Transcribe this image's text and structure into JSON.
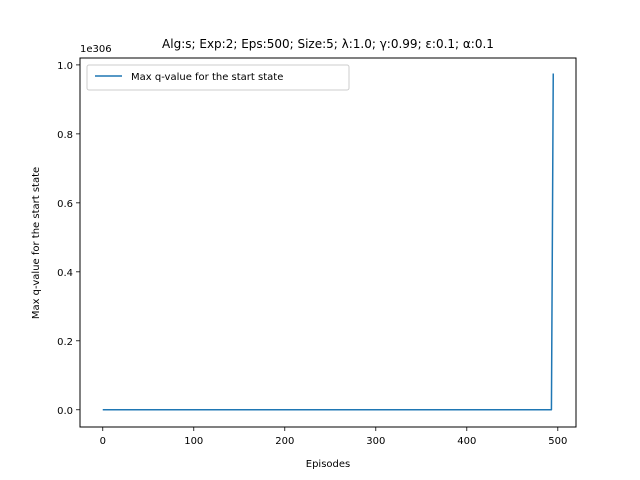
{
  "chart_data": {
    "type": "line",
    "title": "Alg:s; Exp:2; Eps:500; Size:5; λ:1.0; γ:0.99; ε:0.1; α:0.1",
    "xlabel": "Episodes",
    "ylabel": "Max q-value for the start state",
    "y_offset_text": "1e306",
    "xlim": [
      -25,
      520
    ],
    "ylim": [
      -0.05,
      1.02
    ],
    "xticks": [
      0,
      100,
      200,
      300,
      400,
      500
    ],
    "xtick_labels": [
      "0",
      "100",
      "200",
      "300",
      "400",
      "500"
    ],
    "yticks": [
      0,
      0.2,
      0.4,
      0.6,
      0.8,
      1.0
    ],
    "ytick_labels": [
      "0.0",
      "0.2",
      "0.4",
      "0.6",
      "0.8",
      "1.0"
    ],
    "grid": false,
    "legend_position": "top-left",
    "series": [
      {
        "name": "Max q-value for the start state",
        "color": "#1f77b4",
        "x": [
          0,
          100,
          200,
          300,
          400,
          493,
          494,
          495
        ],
        "y": [
          0,
          0,
          0,
          0,
          0,
          0,
          0.48,
          0.975
        ]
      }
    ]
  }
}
